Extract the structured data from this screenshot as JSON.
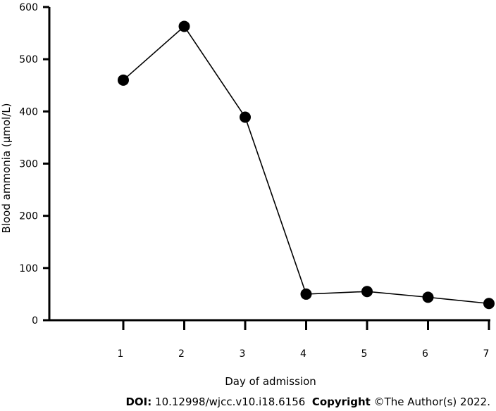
{
  "chart_data": {
    "type": "line",
    "title": "",
    "xlabel": "Day of admission",
    "ylabel": "Blood ammonia (μmol/L)",
    "x": [
      1,
      2,
      3,
      4,
      5,
      6,
      7
    ],
    "xticks": [
      "1",
      "2",
      "3",
      "4",
      "5",
      "6",
      "7"
    ],
    "yticks": [
      "0",
      "100",
      "200",
      "300",
      "400",
      "500",
      "600"
    ],
    "ylim": [
      0,
      600
    ],
    "grid": false,
    "series": [
      {
        "values": [
          460,
          563,
          389,
          50,
          55,
          44,
          32
        ]
      }
    ]
  },
  "footer": {
    "doi_label": "DOI:",
    "doi_value": "10.12998/wjcc.v10.i18.6156",
    "copyright_label": "Copyright",
    "copyright_value": "©The Author(s) 2022."
  }
}
